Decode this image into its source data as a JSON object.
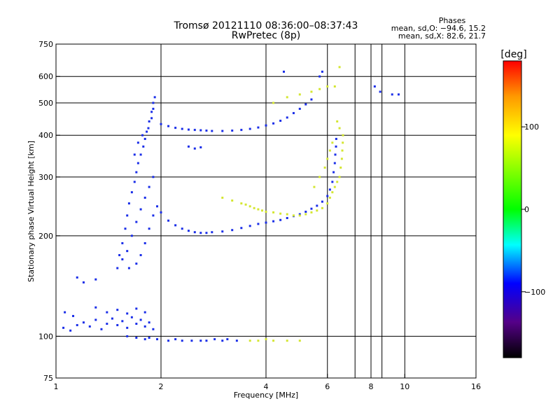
{
  "chart_data": {
    "type": "scatter",
    "title": "Tromsø 20121110 08:36:00–08:37:43",
    "subtitle": "RwPretec (8p)",
    "xlabel": "Frequency [MHz]",
    "ylabel": "Stationary phase Virtual Height [km]",
    "xscale": "log",
    "yscale": "log",
    "xlim": [
      1,
      16
    ],
    "ylim": [
      75,
      750
    ],
    "x_ticks": [
      1,
      2,
      4,
      6,
      8,
      10,
      16
    ],
    "x_tick_labels": [
      "1",
      "2",
      "4",
      "6",
      "8",
      "10",
      "16"
    ],
    "y_ticks": [
      75,
      100,
      200,
      300,
      400,
      500,
      600,
      750
    ],
    "y_tick_labels": [
      "75",
      "100",
      "200",
      "300",
      "400",
      "500",
      "600",
      "750"
    ],
    "x_grid": [
      2,
      4,
      6,
      7.2,
      8,
      8.6,
      10
    ],
    "y_grid": [
      100,
      200,
      300,
      400,
      500,
      600
    ],
    "grid": true,
    "legend_title": "Phases",
    "legend_lines": [
      "mean, sd,O: −94.6, 15.2",
      "mean, sd,X: 82.6, 21.7"
    ],
    "legend_placement": "top-right",
    "colorbar": {
      "label": "[deg]",
      "ticks": [
        100,
        0,
        -100
      ],
      "tick_labels": [
        "100",
        "0",
        "−100"
      ],
      "range": [
        -180,
        180
      ],
      "colors_top_to_bottom": [
        "#ff0000",
        "#ff9900",
        "#ffff00",
        "#00ff00",
        "#00ffff",
        "#0000ff",
        "#550088",
        "#000000"
      ]
    },
    "series": [
      {
        "mode": "O",
        "color": "#1a2ee8",
        "points": [
          [
            1.05,
            106
          ],
          [
            1.1,
            104
          ],
          [
            1.15,
            108
          ],
          [
            1.2,
            110
          ],
          [
            1.25,
            107
          ],
          [
            1.3,
            112
          ],
          [
            1.35,
            105
          ],
          [
            1.4,
            109
          ],
          [
            1.45,
            113
          ],
          [
            1.5,
            108
          ],
          [
            1.55,
            111
          ],
          [
            1.6,
            106
          ],
          [
            1.65,
            114
          ],
          [
            1.7,
            109
          ],
          [
            1.75,
            112
          ],
          [
            1.8,
            107
          ],
          [
            1.85,
            110
          ],
          [
            1.9,
            105
          ],
          [
            1.06,
            118
          ],
          [
            1.12,
            115
          ],
          [
            1.3,
            122
          ],
          [
            1.4,
            118
          ],
          [
            1.5,
            120
          ],
          [
            1.6,
            117
          ],
          [
            1.7,
            121
          ],
          [
            1.8,
            118
          ],
          [
            1.5,
            160
          ],
          [
            1.52,
            175
          ],
          [
            1.55,
            190
          ],
          [
            1.58,
            210
          ],
          [
            1.6,
            230
          ],
          [
            1.62,
            250
          ],
          [
            1.65,
            270
          ],
          [
            1.68,
            290
          ],
          [
            1.7,
            310
          ],
          [
            1.72,
            330
          ],
          [
            1.75,
            350
          ],
          [
            1.78,
            370
          ],
          [
            1.8,
            390
          ],
          [
            1.82,
            410
          ],
          [
            1.85,
            440
          ],
          [
            1.88,
            470
          ],
          [
            1.9,
            500
          ],
          [
            1.92,
            520
          ],
          [
            1.55,
            170
          ],
          [
            1.6,
            180
          ],
          [
            1.65,
            200
          ],
          [
            1.7,
            220
          ],
          [
            1.75,
            240
          ],
          [
            1.8,
            260
          ],
          [
            1.85,
            280
          ],
          [
            1.9,
            300
          ],
          [
            1.62,
            160
          ],
          [
            1.7,
            165
          ],
          [
            1.75,
            175
          ],
          [
            1.8,
            190
          ],
          [
            1.85,
            210
          ],
          [
            1.9,
            230
          ],
          [
            1.95,
            245
          ],
          [
            1.68,
            350
          ],
          [
            1.72,
            380
          ],
          [
            1.77,
            400
          ],
          [
            1.84,
            420
          ],
          [
            1.88,
            450
          ],
          [
            1.9,
            480
          ],
          [
            2.0,
            235
          ],
          [
            2.1,
            222
          ],
          [
            2.2,
            215
          ],
          [
            2.3,
            210
          ],
          [
            2.4,
            207
          ],
          [
            2.5,
            205
          ],
          [
            2.6,
            204
          ],
          [
            2.7,
            204
          ],
          [
            2.8,
            205
          ],
          [
            3.0,
            206
          ],
          [
            3.2,
            208
          ],
          [
            3.4,
            211
          ],
          [
            3.6,
            214
          ],
          [
            3.8,
            217
          ],
          [
            4.0,
            219
          ],
          [
            4.2,
            221
          ],
          [
            4.4,
            223
          ],
          [
            4.6,
            226
          ],
          [
            4.8,
            229
          ],
          [
            5.0,
            232
          ],
          [
            5.2,
            236
          ],
          [
            5.4,
            241
          ],
          [
            5.6,
            246
          ],
          [
            5.8,
            253
          ],
          [
            6.0,
            263
          ],
          [
            6.1,
            275
          ],
          [
            6.2,
            290
          ],
          [
            6.25,
            310
          ],
          [
            6.3,
            330
          ],
          [
            6.32,
            350
          ],
          [
            6.35,
            370
          ],
          [
            6.36,
            390
          ],
          [
            2.0,
            432
          ],
          [
            2.1,
            426
          ],
          [
            2.2,
            421
          ],
          [
            2.3,
            418
          ],
          [
            2.4,
            416
          ],
          [
            2.5,
            415
          ],
          [
            2.6,
            414
          ],
          [
            2.7,
            413
          ],
          [
            2.8,
            412
          ],
          [
            3.0,
            412
          ],
          [
            3.2,
            413
          ],
          [
            3.4,
            415
          ],
          [
            3.6,
            418
          ],
          [
            3.8,
            422
          ],
          [
            4.0,
            428
          ],
          [
            4.2,
            434
          ],
          [
            4.4,
            442
          ],
          [
            4.6,
            452
          ],
          [
            4.8,
            466
          ],
          [
            5.0,
            480
          ],
          [
            5.2,
            495
          ],
          [
            5.4,
            512
          ],
          [
            1.95,
            98
          ],
          [
            2.1,
            97
          ],
          [
            2.2,
            98
          ],
          [
            2.3,
            97
          ],
          [
            2.45,
            97
          ],
          [
            2.6,
            97
          ],
          [
            2.7,
            97
          ],
          [
            2.85,
            98
          ],
          [
            3.0,
            97
          ],
          [
            3.1,
            98
          ],
          [
            3.3,
            97
          ],
          [
            1.6,
            100
          ],
          [
            1.7,
            99
          ],
          [
            1.8,
            98
          ],
          [
            1.85,
            99
          ],
          [
            2.4,
            370
          ],
          [
            2.5,
            365
          ],
          [
            2.6,
            368
          ],
          [
            1.15,
            150
          ],
          [
            1.2,
            145
          ],
          [
            1.3,
            148
          ],
          [
            5.7,
            600
          ],
          [
            5.8,
            620
          ],
          [
            4.5,
            620
          ],
          [
            8.2,
            560
          ],
          [
            8.5,
            540
          ],
          [
            9.2,
            530
          ],
          [
            9.6,
            530
          ]
        ]
      },
      {
        "mode": "X",
        "color": "#d4e632",
        "points": [
          [
            3.0,
            260
          ],
          [
            3.2,
            255
          ],
          [
            3.4,
            250
          ],
          [
            3.5,
            248
          ],
          [
            3.6,
            245
          ],
          [
            3.7,
            242
          ],
          [
            3.8,
            240
          ],
          [
            3.9,
            238
          ],
          [
            4.0,
            236
          ],
          [
            4.2,
            235
          ],
          [
            4.4,
            233
          ],
          [
            4.6,
            232
          ],
          [
            4.8,
            230
          ],
          [
            5.0,
            230
          ],
          [
            5.2,
            232
          ],
          [
            5.4,
            235
          ],
          [
            5.6,
            238
          ],
          [
            5.8,
            242
          ],
          [
            6.0,
            250
          ],
          [
            6.1,
            260
          ],
          [
            6.2,
            270
          ],
          [
            6.3,
            280
          ],
          [
            6.4,
            290
          ],
          [
            6.5,
            300
          ],
          [
            6.55,
            320
          ],
          [
            6.6,
            340
          ],
          [
            6.62,
            360
          ],
          [
            6.64,
            380
          ],
          [
            6.65,
            400
          ],
          [
            6.5,
            420
          ],
          [
            6.4,
            440
          ],
          [
            5.5,
            280
          ],
          [
            5.7,
            300
          ],
          [
            5.9,
            320
          ],
          [
            6.0,
            340
          ],
          [
            6.1,
            360
          ],
          [
            6.2,
            380
          ],
          [
            4.2,
            500
          ],
          [
            4.6,
            520
          ],
          [
            5.0,
            530
          ],
          [
            5.4,
            540
          ],
          [
            5.7,
            550
          ],
          [
            6.0,
            560
          ],
          [
            6.3,
            560
          ],
          [
            6.5,
            640
          ],
          [
            3.6,
            97
          ],
          [
            3.8,
            97
          ],
          [
            4.0,
            98
          ],
          [
            4.2,
            97
          ],
          [
            4.6,
            97
          ],
          [
            5.0,
            97
          ]
        ]
      }
    ]
  }
}
